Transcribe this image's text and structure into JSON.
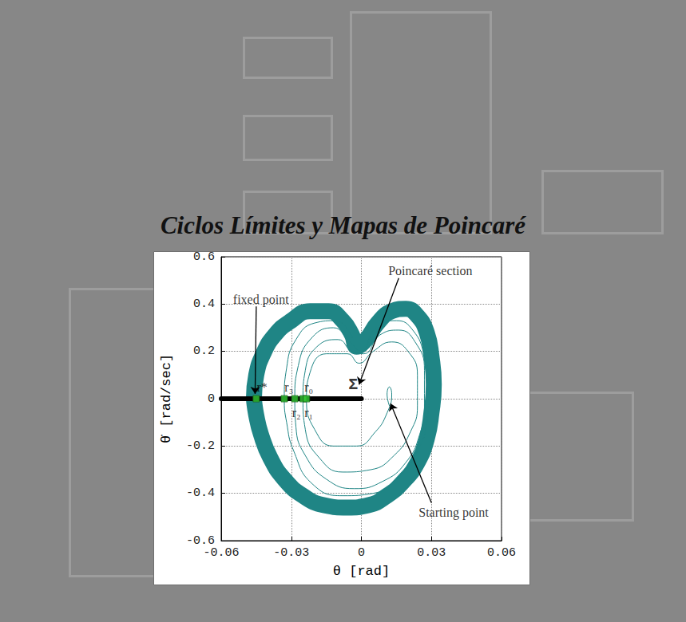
{
  "chart_data": {
    "type": "line",
    "title": "Ciclos Límites y Mapas de Poincaré",
    "x_label": "θ [rad]",
    "y_label": "θ̇ [rad/sec]",
    "xlim": [
      -0.06,
      0.06
    ],
    "xticks": [
      -0.06,
      -0.03,
      0,
      0.03,
      0.06
    ],
    "ylim": [
      -0.6,
      0.6
    ],
    "yticks": [
      -0.6,
      -0.4,
      -0.2,
      0,
      0.2,
      0.4,
      0.6
    ],
    "grid": true,
    "series": [
      {
        "type": "line",
        "color": "#1f8585",
        "line_style": "band",
        "values": [
          [
            -0.046,
            0
          ],
          [
            -0.045,
            0.1
          ],
          [
            -0.042,
            0.19
          ],
          [
            -0.037,
            0.27
          ],
          [
            -0.03,
            0.33
          ],
          [
            -0.022,
            0.37
          ],
          [
            -0.014,
            0.37
          ],
          [
            -0.008,
            0.33
          ],
          [
            -0.004,
            0.27
          ],
          [
            -0.002,
            0.22
          ],
          [
            0.002,
            0.25
          ],
          [
            0.007,
            0.32
          ],
          [
            0.013,
            0.37
          ],
          [
            0.019,
            0.38
          ],
          [
            0.024,
            0.35
          ],
          [
            0.028,
            0.28
          ],
          [
            0.03,
            0.18
          ],
          [
            0.031,
            0.06
          ],
          [
            0.03,
            -0.06
          ],
          [
            0.028,
            -0.17
          ],
          [
            0.024,
            -0.27
          ],
          [
            0.018,
            -0.35
          ],
          [
            0.011,
            -0.41
          ],
          [
            0.003,
            -0.45
          ],
          [
            -0.006,
            -0.46
          ],
          [
            -0.016,
            -0.45
          ],
          [
            -0.025,
            -0.41
          ],
          [
            -0.033,
            -0.34
          ],
          [
            -0.039,
            -0.25
          ],
          [
            -0.043,
            -0.15
          ],
          [
            -0.045,
            -0.07
          ],
          [
            -0.046,
            0
          ]
        ]
      },
      {
        "type": "line",
        "color": "#1f8585",
        "line_style": "solid",
        "values": [
          [
            0.012,
            -0.03
          ],
          [
            0.011,
            0.02
          ],
          [
            0.012,
            0.05
          ],
          [
            0.013,
            0.02
          ],
          [
            0.011,
            -0.06
          ],
          [
            0.006,
            -0.14
          ],
          [
            -0.002,
            -0.2
          ],
          [
            -0.012,
            -0.2
          ],
          [
            -0.02,
            -0.13
          ],
          [
            -0.0235,
            0
          ],
          [
            -0.022,
            0.11
          ],
          [
            -0.015,
            0.19
          ],
          [
            -0.006,
            0.19
          ],
          [
            -0.001,
            0.15
          ],
          [
            0.005,
            0.2
          ],
          [
            0.013,
            0.24
          ],
          [
            0.02,
            0.2
          ],
          [
            0.024,
            0.1
          ],
          [
            0.024,
            -0.03
          ],
          [
            0.021,
            -0.14
          ],
          [
            0.014,
            -0.24
          ],
          [
            0.004,
            -0.3
          ],
          [
            -0.008,
            -0.31
          ],
          [
            -0.018,
            -0.25
          ],
          [
            -0.024,
            -0.13
          ],
          [
            -0.025,
            0
          ],
          [
            -0.024,
            0.12
          ],
          [
            -0.019,
            0.22
          ],
          [
            -0.01,
            0.25
          ],
          [
            -0.004,
            0.2
          ],
          [
            0.001,
            0.19
          ],
          [
            0.008,
            0.27
          ],
          [
            0.016,
            0.29
          ],
          [
            0.023,
            0.24
          ],
          [
            0.027,
            0.12
          ],
          [
            0.027,
            -0.02
          ],
          [
            0.025,
            -0.15
          ],
          [
            0.019,
            -0.27
          ],
          [
            0.009,
            -0.35
          ],
          [
            -0.003,
            -0.38
          ],
          [
            -0.015,
            -0.34
          ],
          [
            -0.024,
            -0.24
          ],
          [
            -0.028,
            -0.12
          ],
          [
            -0.0285,
            0
          ],
          [
            -0.027,
            0.14
          ],
          [
            -0.021,
            0.26
          ],
          [
            -0.012,
            0.3
          ],
          [
            -0.005,
            0.24
          ],
          [
            0,
            0.2
          ],
          [
            0.006,
            0.3
          ],
          [
            0.015,
            0.33
          ],
          [
            0.022,
            0.29
          ],
          [
            0.027,
            0.18
          ],
          [
            0.029,
            0.04
          ],
          [
            0.028,
            -0.1
          ],
          [
            0.024,
            -0.22
          ],
          [
            0.016,
            -0.33
          ],
          [
            0.005,
            -0.4
          ],
          [
            -0.008,
            -0.41
          ],
          [
            -0.021,
            -0.36
          ],
          [
            -0.029,
            -0.22
          ],
          [
            -0.032,
            -0.1
          ],
          [
            -0.033,
            0
          ],
          [
            -0.032,
            0.13
          ],
          [
            -0.028,
            0.25
          ],
          [
            -0.02,
            0.32
          ],
          [
            -0.011,
            0.33
          ],
          [
            -0.004,
            0.26
          ]
        ]
      },
      {
        "type": "line",
        "color": "#000000",
        "line_style": "section",
        "values": [
          [
            -0.06,
            0
          ],
          [
            0,
            0
          ]
        ]
      },
      {
        "type": "scatter",
        "color": "#33cc33",
        "marker": "square",
        "values": [
          [
            -0.045,
            0
          ],
          [
            -0.033,
            0
          ],
          [
            -0.0285,
            0
          ],
          [
            -0.025,
            0
          ],
          [
            -0.0235,
            0
          ]
        ]
      }
    ],
    "annotations": [
      {
        "text": "fixed point",
        "x": -0.043,
        "y": 0.42,
        "arrow_from": [
          -0.045,
          0.39
        ],
        "arrow_to": [
          -0.0455,
          0.02
        ]
      },
      {
        "text": "Poincaré section",
        "x": 0.0295,
        "y": 0.54,
        "arrow_from": [
          0.016,
          0.51
        ],
        "arrow_to": [
          -0.001,
          0.06
        ]
      },
      {
        "text": "Starting point",
        "x": 0.0395,
        "y": -0.48,
        "arrow_from": [
          0.03,
          -0.44
        ],
        "arrow_to": [
          0.0125,
          -0.02
        ]
      },
      {
        "text": "Σ",
        "x": -0.0035,
        "y": 0.06
      },
      {
        "text": "r*",
        "x": -0.0425,
        "y": 0.05
      },
      {
        "text": "r₃",
        "x": -0.031,
        "y": 0.05
      },
      {
        "text": "r₀",
        "x": -0.0225,
        "y": 0.05
      },
      {
        "text": "r₂",
        "x": -0.0278,
        "y": -0.06
      },
      {
        "text": "r₁",
        "x": -0.0225,
        "y": -0.06
      }
    ]
  }
}
